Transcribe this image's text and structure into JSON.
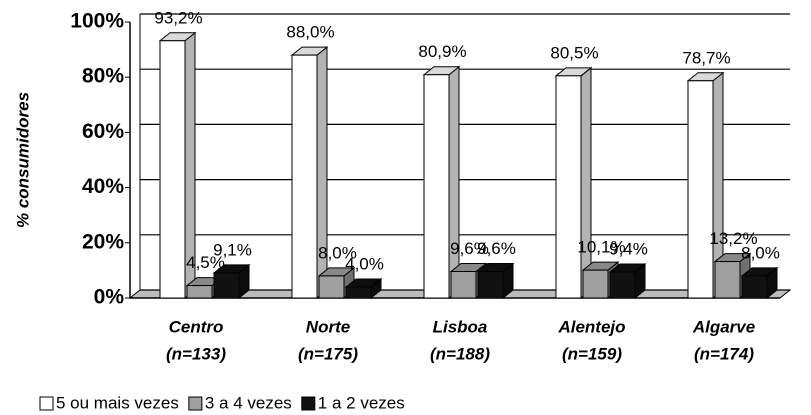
{
  "chart_data": {
    "type": "bar3d",
    "ylabel": "% consumidores",
    "categories": [
      "Centro",
      "Norte",
      "Lisboa",
      "Alentejo",
      "Algarve"
    ],
    "category_subtitles": [
      "(n=133)",
      "(n=175)",
      "(n=188)",
      "(n=159)",
      "(n=174)"
    ],
    "series": [
      {
        "name": "5 ou mais vezes",
        "color": "#ffffff",
        "values": [
          93.2,
          88.0,
          80.9,
          80.5,
          78.7
        ],
        "value_labels": [
          "93,2%",
          "88,0%",
          "80,9%",
          "80,5%",
          "78,7%"
        ]
      },
      {
        "name": "3 a 4 vezes",
        "color": "#a0a0a0",
        "values": [
          4.5,
          8.0,
          9.6,
          10.1,
          13.2
        ],
        "value_labels": [
          "4,5%",
          "8,0%",
          "9,6%",
          "10,1%",
          "13,2%"
        ]
      },
      {
        "name": "1 a 2 vezes",
        "color": "#111111",
        "values": [
          9.1,
          4.0,
          9.6,
          9.4,
          8.0
        ],
        "value_labels": [
          "9,1%",
          "4,0%",
          "9,6%",
          "9,4%",
          "8,0%"
        ]
      }
    ],
    "ylim": [
      0,
      100
    ],
    "yticks": [
      {
        "value": 0,
        "label": "0%"
      },
      {
        "value": 20,
        "label": "20%"
      },
      {
        "value": 40,
        "label": "40%"
      },
      {
        "value": 60,
        "label": "60%"
      },
      {
        "value": 80,
        "label": "80%"
      },
      {
        "value": 100,
        "label": "100%"
      }
    ],
    "grid": true
  }
}
